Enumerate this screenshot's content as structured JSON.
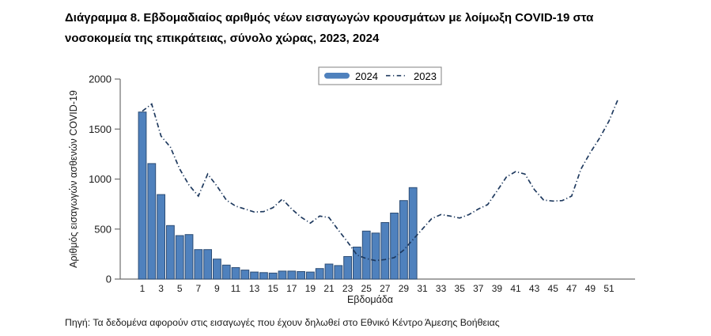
{
  "figure": {
    "title_line1": "Διάγραμμα 8. Εβδομαδιαίος αριθμός νέων εισαγωγών κρουσμάτων με λοίμωξη COVID-19 στα",
    "title_line2": "νοσοκομεία της επικράτειας, σύνολο χώρας, 2023, 2024",
    "source_note": "Πηγή: Τα δεδομένα αφορούν στις εισαγωγές που έχουν δηλωθεί στο Εθνικό Κέντρο Άμεσης Βοήθειας"
  },
  "chart_data": {
    "type": "bar+line",
    "title": "Διάγραμμα 8. Εβδομαδιαίος αριθμός νέων εισαγωγών κρουσμάτων με λοίμωξη COVID-19 στα νοσοκομεία της επικράτειας, σύνολο χώρας, 2023, 2024",
    "xlabel": "Εβδομάδα",
    "ylabel": "Αριθμός εισαγωγών ασθενών COVID-19",
    "ylim": [
      0,
      2000
    ],
    "yticks": [
      0,
      500,
      1000,
      1500,
      2000
    ],
    "xticks": [
      1,
      3,
      5,
      7,
      9,
      11,
      13,
      15,
      17,
      19,
      21,
      23,
      25,
      27,
      29,
      31,
      33,
      35,
      37,
      39,
      41,
      43,
      45,
      47,
      49,
      51
    ],
    "grid": false,
    "legend_position": "top-center",
    "colors": {
      "bar_fill": "#4f81bd",
      "bar_border": "#2d4d75",
      "line": "#1f3a5f",
      "axis": "#6e6e6e",
      "tick_text": "#1a1a1a",
      "legend_border": "#808080"
    },
    "series": [
      {
        "name": "2024",
        "type": "bar",
        "weeks": [
          1,
          2,
          3,
          4,
          5,
          6,
          7,
          8,
          9,
          10,
          11,
          12,
          13,
          14,
          15,
          16,
          17,
          18,
          19,
          20,
          21,
          22,
          23,
          24,
          25,
          26,
          27,
          28,
          29,
          30
        ],
        "values": [
          1670,
          1155,
          845,
          535,
          435,
          445,
          295,
          295,
          200,
          140,
          115,
          90,
          70,
          65,
          60,
          80,
          80,
          75,
          70,
          105,
          150,
          135,
          225,
          320,
          480,
          460,
          565,
          660,
          785,
          915
        ]
      },
      {
        "name": "2023",
        "type": "line",
        "dash": "dash-dot",
        "weeks": [
          1,
          2,
          3,
          4,
          5,
          6,
          7,
          8,
          9,
          10,
          11,
          12,
          13,
          14,
          15,
          16,
          17,
          18,
          19,
          20,
          21,
          22,
          23,
          24,
          25,
          26,
          27,
          28,
          29,
          30,
          31,
          32,
          33,
          34,
          35,
          36,
          37,
          38,
          39,
          40,
          41,
          42,
          43,
          44,
          45,
          46,
          47,
          48,
          49,
          50,
          51,
          52
        ],
        "values": [
          1680,
          1750,
          1430,
          1320,
          1100,
          940,
          830,
          1050,
          930,
          790,
          730,
          700,
          670,
          675,
          715,
          800,
          700,
          620,
          560,
          630,
          615,
          490,
          370,
          240,
          205,
          185,
          195,
          215,
          290,
          395,
          500,
          605,
          645,
          630,
          610,
          645,
          700,
          745,
          880,
          1020,
          1075,
          1050,
          895,
          790,
          780,
          785,
          830,
          1100,
          1265,
          1410,
          1580,
          1805
        ]
      }
    ]
  }
}
